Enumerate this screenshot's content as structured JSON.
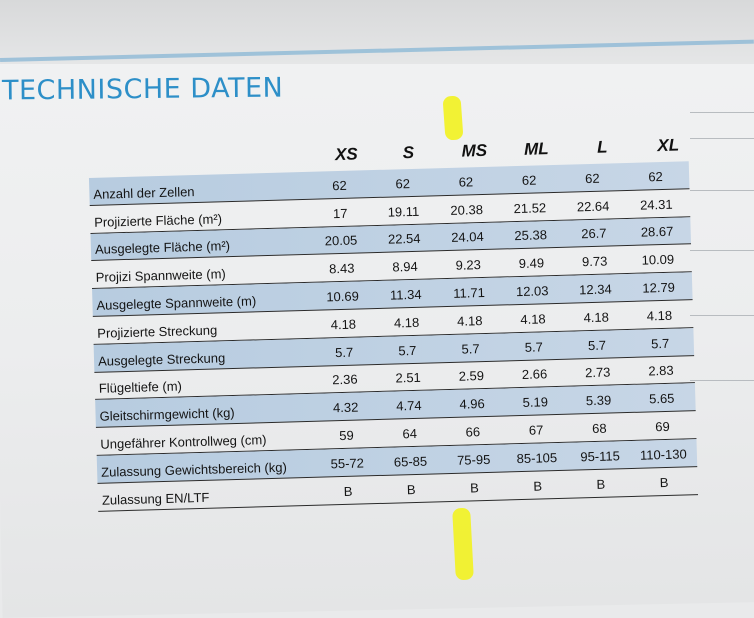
{
  "title": "TECHNISCHE DATEN",
  "columns": [
    "XS",
    "S",
    "MS",
    "ML",
    "L",
    "XL"
  ],
  "rows": [
    {
      "label": "Anzahl der Zellen",
      "values": [
        "62",
        "62",
        "62",
        "62",
        "62",
        "62"
      ]
    },
    {
      "label": "Projizierte Fläche (m²)",
      "values": [
        "17",
        "19.11",
        "20.38",
        "21.52",
        "22.64",
        "24.31"
      ]
    },
    {
      "label": "Ausgelegte Fläche (m²)",
      "values": [
        "20.05",
        "22.54",
        "24.04",
        "25.38",
        "26.7",
        "28.67"
      ]
    },
    {
      "label": "Projizi Spannweite (m)",
      "values": [
        "8.43",
        "8.94",
        "9.23",
        "9.49",
        "9.73",
        "10.09"
      ]
    },
    {
      "label": "Ausgelegte Spannweite (m)",
      "values": [
        "10.69",
        "11.34",
        "11.71",
        "12.03",
        "12.34",
        "12.79"
      ]
    },
    {
      "label": "Projizierte Streckung",
      "values": [
        "4.18",
        "4.18",
        "4.18",
        "4.18",
        "4.18",
        "4.18"
      ]
    },
    {
      "label": "Ausgelegte Streckung",
      "values": [
        "5.7",
        "5.7",
        "5.7",
        "5.7",
        "5.7",
        "5.7"
      ]
    },
    {
      "label": "Flügeltiefe (m)",
      "values": [
        "2.36",
        "2.51",
        "2.59",
        "2.66",
        "2.73",
        "2.83"
      ]
    },
    {
      "label": "Gleitschirmgewicht (kg)",
      "values": [
        "4.32",
        "4.74",
        "4.96",
        "5.19",
        "5.39",
        "5.65"
      ]
    },
    {
      "label": "Ungefährer Kontrollweg (cm)",
      "values": [
        "59",
        "64",
        "66",
        "67",
        "68",
        "69"
      ]
    },
    {
      "label": "Zulassung Gewichtsbereich (kg)",
      "values": [
        "55-72",
        "65-85",
        "75-95",
        "85-105",
        "95-115",
        "110-130"
      ]
    },
    {
      "label": "Zulassung EN/LTF",
      "values": [
        "B",
        "B",
        "B",
        "B",
        "B",
        "B"
      ]
    }
  ],
  "colors": {
    "title": "#2d8fc8",
    "row_shade": "#b9cde1",
    "highlighter": "#f2f224"
  }
}
